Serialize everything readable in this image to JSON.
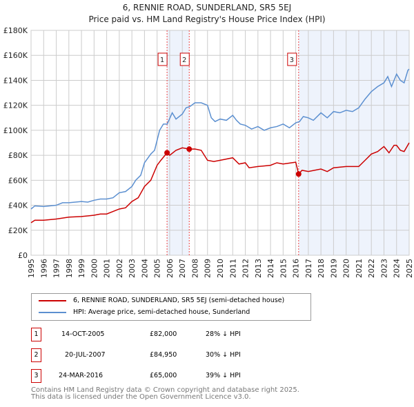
{
  "chart_data": {
    "type": "line",
    "title": "6, RENNIE ROAD, SUNDERLAND, SR5 5EJ",
    "subtitle": "Price paid vs. HM Land Registry's House Price Index (HPI)",
    "xlim": [
      1995,
      2025
    ],
    "ylim": [
      0,
      180000
    ],
    "yticks": [
      {
        "v": 0,
        "label": "£0"
      },
      {
        "v": 20000,
        "label": "£20K"
      },
      {
        "v": 40000,
        "label": "£40K"
      },
      {
        "v": 60000,
        "label": "£60K"
      },
      {
        "v": 80000,
        "label": "£80K"
      },
      {
        "v": 100000,
        "label": "£100K"
      },
      {
        "v": 120000,
        "label": "£120K"
      },
      {
        "v": 140000,
        "label": "£140K"
      },
      {
        "v": 160000,
        "label": "£160K"
      },
      {
        "v": 180000,
        "label": "£180K"
      }
    ],
    "xticks": [
      "1995",
      "1996",
      "1997",
      "1998",
      "1999",
      "2000",
      "2001",
      "2002",
      "2003",
      "2004",
      "2005",
      "2006",
      "2007",
      "2008",
      "2009",
      "2010",
      "2011",
      "2012",
      "2013",
      "2014",
      "2015",
      "2016",
      "2017",
      "2018",
      "2019",
      "2020",
      "2021",
      "2022",
      "2023",
      "2024",
      "2025"
    ],
    "grid": true,
    "shaded_ranges": [
      [
        2005.79,
        2007.55
      ],
      [
        2016.23,
        2025
      ]
    ],
    "series": [
      {
        "name": "6, RENNIE ROAD, SUNDERLAND, SR5 5EJ (semi-detached house)",
        "color": "#cc0000",
        "x": [
          1995,
          1995.3,
          1996,
          1997,
          1998,
          1999,
          2000,
          2000.5,
          2001,
          2002,
          2002.5,
          2003,
          2003.5,
          2004,
          2004.5,
          2005,
          2005.3,
          2005.79,
          2006,
          2006.5,
          2007,
          2007.55,
          2008,
          2008.5,
          2009,
          2009.5,
          2010,
          2011,
          2011.5,
          2012,
          2012.3,
          2013,
          2014,
          2014.5,
          2015,
          2016,
          2016.23,
          2016.5,
          2017,
          2018,
          2018.5,
          2019,
          2020,
          2021,
          2021.5,
          2022,
          2022.5,
          2023,
          2023.4,
          2023.8,
          2024,
          2024.3,
          2024.6,
          2025
        ],
        "y": [
          26000,
          28000,
          28000,
          29000,
          30500,
          31000,
          32000,
          33000,
          33000,
          37000,
          38000,
          43000,
          46000,
          55000,
          60000,
          72000,
          76000,
          82000,
          80000,
          84000,
          86000,
          84950,
          85000,
          84000,
          76000,
          75000,
          76000,
          78000,
          73000,
          74000,
          70000,
          71000,
          72000,
          74000,
          73000,
          74500,
          65000,
          68000,
          67000,
          69000,
          67000,
          70000,
          71000,
          71000,
          76000,
          81000,
          83000,
          87000,
          82000,
          88000,
          88000,
          84000,
          83000,
          90000
        ]
      },
      {
        "name": "HPI: Average price, semi-detached house, Sunderland",
        "color": "#5b8fd0",
        "x": [
          1995,
          1995.3,
          1996,
          1997,
          1997.5,
          1998,
          1999,
          1999.5,
          2000,
          2000.5,
          2001,
          2001.5,
          2002,
          2002.5,
          2003,
          2003.3,
          2003.7,
          2004,
          2004.5,
          2004.8,
          2005.2,
          2005.5,
          2005.8,
          2006.2,
          2006.5,
          2007,
          2007.3,
          2007.6,
          2008,
          2008.5,
          2009,
          2009.3,
          2009.6,
          2010,
          2010.5,
          2011,
          2011.3,
          2011.6,
          2012,
          2012.5,
          2013,
          2013.5,
          2014,
          2014.5,
          2015,
          2015.5,
          2016,
          2016.3,
          2016.6,
          2017,
          2017.4,
          2018,
          2018.5,
          2019,
          2019.5,
          2020,
          2020.5,
          2021,
          2021.5,
          2022,
          2022.5,
          2023,
          2023.3,
          2023.6,
          2024,
          2024.3,
          2024.6,
          2024.9,
          2025
        ],
        "y": [
          37000,
          39500,
          39000,
          40000,
          42000,
          42000,
          43000,
          42500,
          44000,
          45000,
          45000,
          46000,
          50000,
          51000,
          55000,
          60000,
          64000,
          74000,
          81000,
          84000,
          100000,
          105000,
          105000,
          114000,
          109000,
          113000,
          118000,
          119000,
          122000,
          122000,
          120000,
          110000,
          107000,
          109000,
          108000,
          112000,
          108000,
          105000,
          104000,
          101000,
          103000,
          100000,
          102000,
          103000,
          105000,
          102000,
          106000,
          107000,
          111000,
          110000,
          108000,
          114000,
          110000,
          115000,
          114000,
          116000,
          115000,
          118000,
          125000,
          131000,
          135000,
          138000,
          143000,
          135000,
          145000,
          140000,
          138000,
          148000,
          149000
        ]
      }
    ],
    "sales": [
      {
        "num": "1",
        "x": 2005.79,
        "price": 82000,
        "date": "14-OCT-2005",
        "price_label": "£82,000",
        "hpi": "28% ↓ HPI"
      },
      {
        "num": "2",
        "x": 2007.55,
        "price": 84950,
        "date": "20-JUL-2007",
        "price_label": "£84,950",
        "hpi": "30% ↓ HPI"
      },
      {
        "num": "3",
        "x": 2016.23,
        "price": 65000,
        "date": "24-MAR-2016",
        "price_label": "£65,000",
        "hpi": "39% ↓ HPI"
      }
    ]
  },
  "footer": {
    "line1": "Contains HM Land Registry data © Crown copyright and database right 2025.",
    "line2": "This data is licensed under the Open Government Licence v3.0."
  }
}
